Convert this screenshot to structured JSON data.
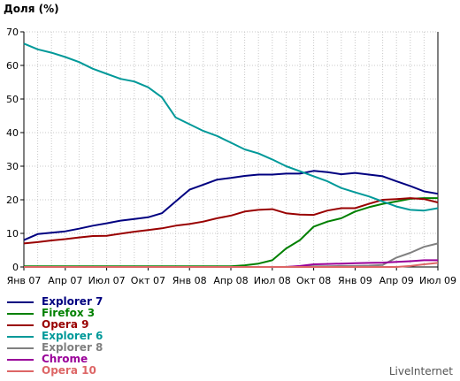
{
  "chart_data": {
    "type": "line",
    "title": "",
    "ylabel": "Доля (%)",
    "xlabel": "",
    "ylim": [
      0,
      70
    ],
    "yticks": [
      0,
      10,
      20,
      30,
      40,
      50,
      60,
      70
    ],
    "x_ticks": [
      "Янв 07",
      "Апр 07",
      "Июл 07",
      "Окт 07",
      "Янв 08",
      "Апр 08",
      "Июл 08",
      "Окт 08",
      "Янв 09",
      "Апр 09",
      "Июл 09"
    ],
    "x_months": [
      "янв 07",
      "фев 07",
      "мар 07",
      "апр 07",
      "май 07",
      "июн 07",
      "июл 07",
      "авг 07",
      "сен 07",
      "окт 07",
      "ноя 07",
      "дек 07",
      "янв 08",
      "фев 08",
      "мар 08",
      "апр 08",
      "май 08",
      "июн 08",
      "июл 08",
      "авг 08",
      "сен 08",
      "окт 08",
      "ноя 08",
      "дек 08",
      "янв 09",
      "фев 09",
      "мар 09",
      "апр 09",
      "май 09",
      "июн 09",
      "июл 09"
    ],
    "grid": true,
    "legend_position": "bottom-left",
    "series": [
      {
        "name": "Explorer 7",
        "color": "#000080",
        "values": [
          8,
          9.8,
          10.2,
          10.6,
          11.4,
          12.3,
          13.0,
          13.8,
          14.3,
          14.8,
          16,
          19.5,
          23,
          24.5,
          26,
          26.5,
          27.1,
          27.5,
          27.5,
          27.8,
          27.8,
          28.6,
          28.2,
          27.6,
          28.0,
          27.5,
          27.0,
          25.5,
          24.1,
          22.5,
          21.8
        ]
      },
      {
        "name": "Firefox 3",
        "color": "#008000",
        "values": [
          0.2,
          0.2,
          0.2,
          0.2,
          0.2,
          0.2,
          0.2,
          0.2,
          0.2,
          0.2,
          0.2,
          0.2,
          0.2,
          0.2,
          0.2,
          0.2,
          0.5,
          1,
          2,
          5.5,
          8,
          12,
          13.5,
          14.5,
          16.5,
          17.8,
          18.8,
          19.5,
          20.3,
          20.5,
          20.5
        ]
      },
      {
        "name": "Opera 9",
        "color": "#990000",
        "values": [
          7,
          7.4,
          7.9,
          8.3,
          8.8,
          9.2,
          9.3,
          9.9,
          10.5,
          11.0,
          11.5,
          12.3,
          12.8,
          13.5,
          14.5,
          15.3,
          16.5,
          17.0,
          17.2,
          16.0,
          15.6,
          15.5,
          16.8,
          17.5,
          17.5,
          18.8,
          20.0,
          20.2,
          20.5,
          20.2,
          19.2
        ]
      },
      {
        "name": "Explorer 6",
        "color": "#009999",
        "values": [
          66.5,
          64.8,
          63.8,
          62.5,
          61.0,
          59.0,
          57.5,
          56.0,
          55.2,
          53.5,
          50.5,
          44.5,
          42.5,
          40.5,
          39.0,
          37.0,
          35.0,
          33.8,
          32.0,
          30.0,
          28.5,
          27.0,
          25.5,
          23.5,
          22.2,
          21.0,
          19.5,
          18.0,
          17.0,
          16.8,
          17.5
        ]
      },
      {
        "name": "Explorer 8",
        "color": "#808080",
        "values": [
          0,
          0,
          0,
          0,
          0,
          0,
          0,
          0,
          0,
          0,
          0,
          0,
          0,
          0,
          0,
          0,
          0,
          0,
          0,
          0,
          0.2,
          0.2,
          0.2,
          0.3,
          0.3,
          0.4,
          0.6,
          2.8,
          4.2,
          6.0,
          7.0
        ]
      },
      {
        "name": "Chrome",
        "color": "#990099",
        "values": [
          0,
          0,
          0,
          0,
          0,
          0,
          0,
          0,
          0,
          0,
          0,
          0,
          0,
          0,
          0,
          0,
          0,
          0,
          0,
          0,
          0.3,
          0.8,
          0.9,
          1.0,
          1.1,
          1.2,
          1.3,
          1.5,
          1.7,
          2.0,
          2.0
        ]
      },
      {
        "name": "Opera 10",
        "color": "#dd6666",
        "values": [
          0,
          0,
          0,
          0,
          0,
          0,
          0,
          0,
          0,
          0,
          0,
          0,
          0,
          0,
          0,
          0,
          0,
          0,
          0,
          0,
          0,
          0,
          0,
          0,
          0,
          0,
          0,
          0,
          0.3,
          0.8,
          1.2
        ]
      }
    ]
  },
  "source": "LiveInternet"
}
